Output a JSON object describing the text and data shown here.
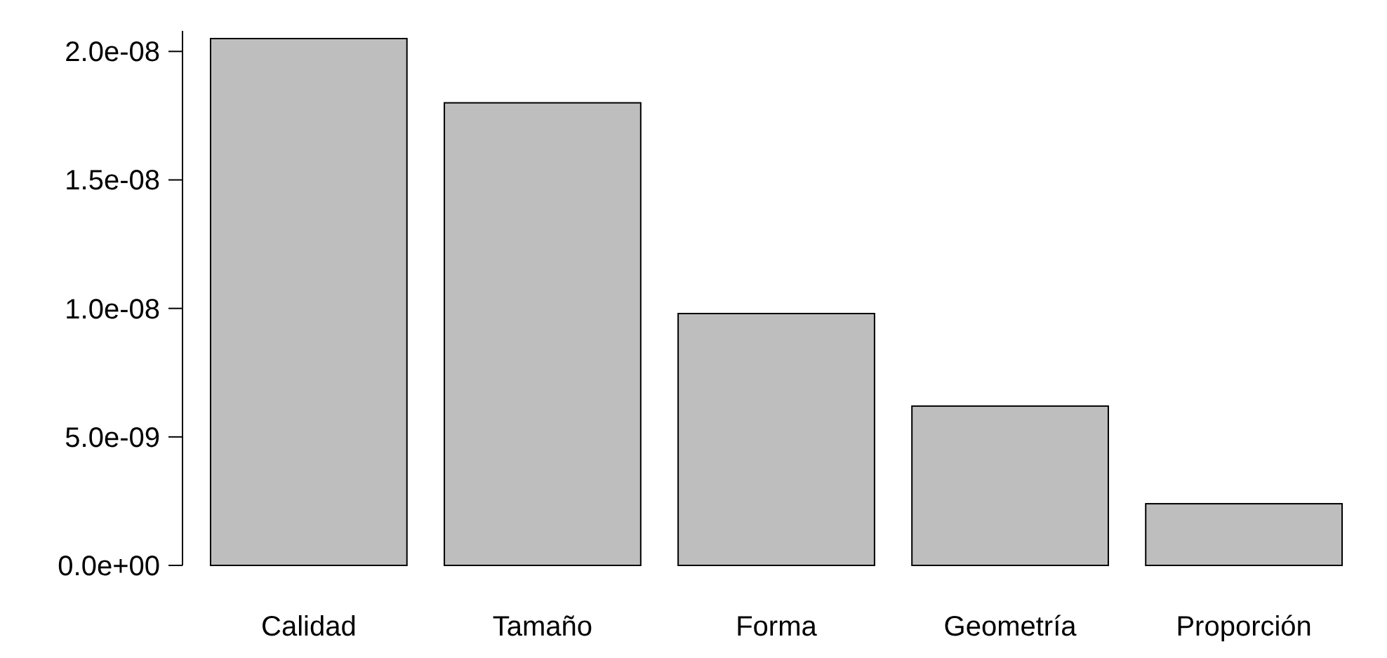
{
  "chart_data": {
    "type": "bar",
    "categories": [
      "Calidad",
      "Tamaño",
      "Forma",
      "Geometría",
      "Proporción"
    ],
    "values": [
      2.05e-08,
      1.8e-08,
      9.8e-09,
      6.2e-09,
      2.4e-09
    ],
    "color": "#bebebe",
    "ylim": [
      0,
      2.08e-08
    ],
    "yticks": [
      {
        "value": 0,
        "label": "0.0e+00"
      },
      {
        "value": 5e-09,
        "label": "5.0e-09"
      },
      {
        "value": 1e-08,
        "label": "1.0e-08"
      },
      {
        "value": 1.5e-08,
        "label": "1.5e-08"
      },
      {
        "value": 2e-08,
        "label": "2.0e-08"
      }
    ],
    "grid": false
  }
}
